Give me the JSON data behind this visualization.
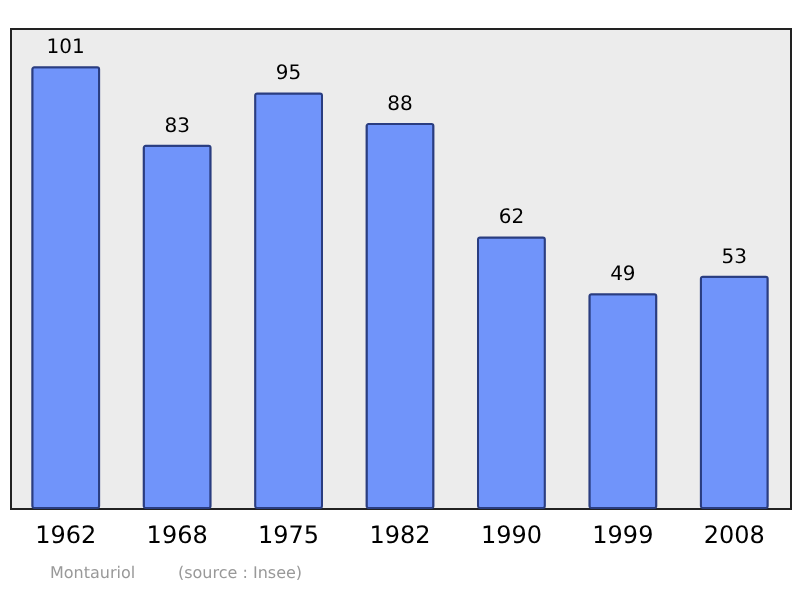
{
  "chart_data": {
    "type": "bar",
    "categories": [
      "1962",
      "1968",
      "1975",
      "1982",
      "1990",
      "1999",
      "2008"
    ],
    "values": [
      101,
      83,
      95,
      88,
      62,
      49,
      53
    ],
    "color": "#7094fa",
    "data_labels": true,
    "grid": false,
    "tick_labels": "x",
    "annotations": [
      "Montauriol",
      "(source : Insee)"
    ]
  }
}
